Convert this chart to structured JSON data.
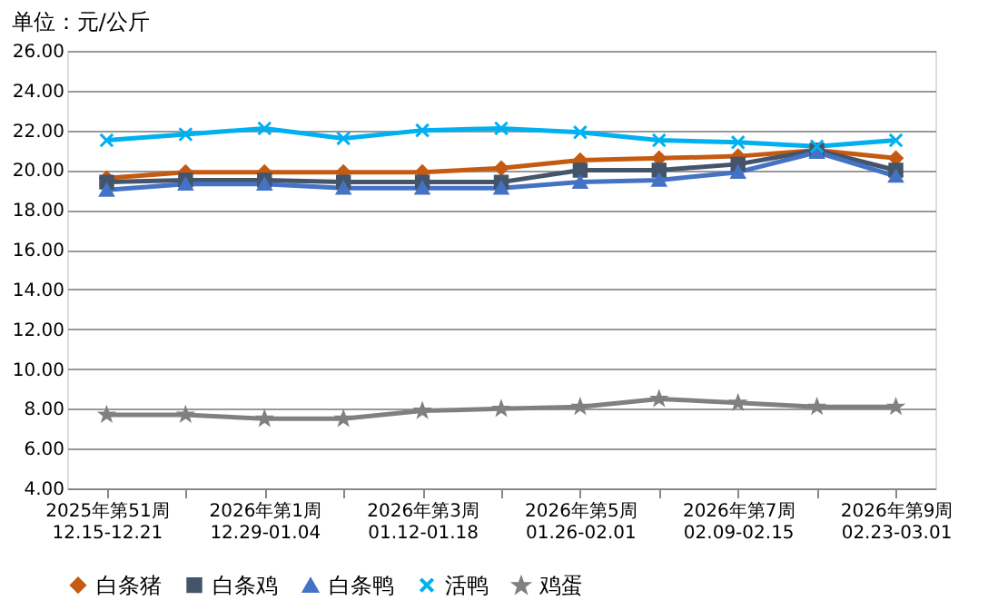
{
  "chart_data": {
    "type": "line",
    "title": "单位：元/公斤",
    "categories": [
      "2025年第51周\n12.15-12.21",
      null,
      "2026年第1周\n12.29-01.04",
      null,
      "2026年第3周\n01.12-01.18",
      null,
      "2026年第5周\n01.26-02.01",
      null,
      "2026年第7周\n02.09-02.15",
      null,
      "2026年第9周\n02.23-03.01"
    ],
    "series": [
      {
        "name": "白条猪",
        "color": "#c55a11",
        "marker": "diamond",
        "values": [
          19.6,
          19.9,
          19.9,
          19.9,
          19.9,
          20.1,
          20.5,
          20.6,
          20.7,
          21.0,
          20.6
        ]
      },
      {
        "name": "白条鸡",
        "color": "#44546a",
        "marker": "square",
        "values": [
          19.4,
          19.5,
          19.5,
          19.4,
          19.4,
          19.4,
          20.0,
          20.0,
          20.3,
          21.0,
          20.0
        ]
      },
      {
        "name": "白条鸭",
        "color": "#4472c4",
        "marker": "triangle",
        "values": [
          19.0,
          19.3,
          19.3,
          19.1,
          19.1,
          19.1,
          19.4,
          19.5,
          19.9,
          20.9,
          19.7
        ]
      },
      {
        "name": "活鸭",
        "color": "#00b0f0",
        "marker": "cross",
        "values": [
          21.5,
          21.8,
          22.1,
          21.6,
          22.0,
          22.1,
          21.9,
          21.5,
          21.4,
          21.2,
          21.5
        ]
      },
      {
        "name": "鸡蛋",
        "color": "#808080",
        "marker": "star",
        "values": [
          7.7,
          7.7,
          7.5,
          7.5,
          7.9,
          8.0,
          8.1,
          8.5,
          8.3,
          8.1,
          8.1
        ]
      }
    ],
    "ylim": [
      4,
      26
    ],
    "yticks": [
      {
        "value": 4,
        "label": "4.00"
      },
      {
        "value": 6,
        "label": "6.00"
      },
      {
        "value": 8,
        "label": "8.00"
      },
      {
        "value": 10,
        "label": "10.00"
      },
      {
        "value": 12,
        "label": "12.00"
      },
      {
        "value": 14,
        "label": "14.00"
      },
      {
        "value": 16,
        "label": "16.00"
      },
      {
        "value": 18,
        "label": "18.00"
      },
      {
        "value": 20,
        "label": "20.00"
      },
      {
        "value": 22,
        "label": "22.00"
      },
      {
        "value": 24,
        "label": "24.00"
      },
      {
        "value": 26,
        "label": "26.00"
      }
    ],
    "grid": "y",
    "legend": "bottom",
    "line_style": "solid"
  }
}
